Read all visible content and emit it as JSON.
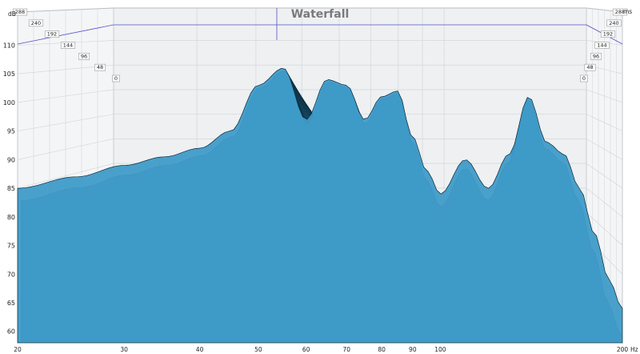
{
  "chart_data": {
    "type": "area",
    "title": "Waterfall",
    "ylabel": "dB",
    "xlabel": "Hz",
    "time_unit": "ms",
    "x_scale": "log",
    "xlim": [
      20,
      200
    ],
    "ylim": [
      58,
      113
    ],
    "y_ticks": [
      60,
      65,
      70,
      75,
      80,
      85,
      90,
      95,
      100,
      105,
      110
    ],
    "x_ticks": [
      20,
      30,
      40,
      50,
      60,
      70,
      80,
      90,
      100,
      200
    ],
    "time_ticks": [
      0,
      48,
      96,
      144,
      192,
      240,
      288
    ],
    "time_range": [
      0,
      288
    ],
    "slice_count": 28,
    "grid": true,
    "colors": {
      "fill": "#2b86b3",
      "fill_light": "#3f9bc8",
      "outline": "#0b2a3a",
      "wall": "#eef0f2",
      "grid": "#cfd3d8",
      "cursor": "#5050c8"
    },
    "series": [
      {
        "name": "0 ms",
        "x": [
          20,
          25,
          30,
          35,
          40,
          45,
          50,
          55,
          60,
          65,
          70,
          75,
          80,
          85,
          90,
          95,
          100,
          110,
          120,
          130,
          140,
          150,
          160,
          170,
          180,
          190,
          200
        ],
        "y": [
          85,
          87,
          89,
          90.5,
          92,
          95,
          103,
          106,
          97,
          104,
          103,
          97,
          101,
          102,
          94,
          88,
          84,
          90,
          85,
          91,
          101,
          93,
          91,
          85,
          77,
          69,
          64
        ]
      }
    ]
  }
}
